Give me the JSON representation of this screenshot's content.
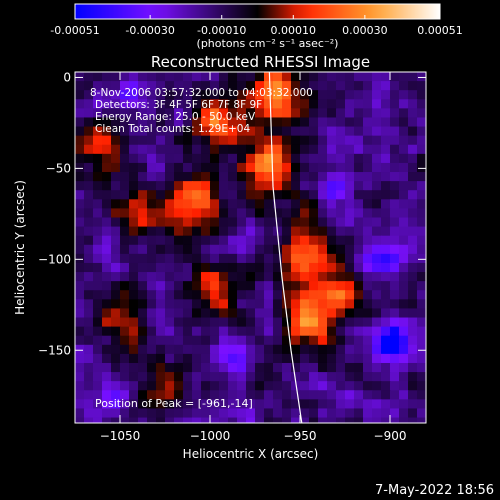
{
  "chart_data": {
    "type": "heatmap",
    "title": "Reconstructed RHESSI Image",
    "xlabel": "Heliocentric X (arcsec)",
    "ylabel": "Heliocentric Y (arcsec)",
    "xlim": [
      -1075,
      -880
    ],
    "ylim": [
      -190,
      3
    ],
    "x_ticks": [
      -1050,
      -1000,
      -950,
      -900
    ],
    "x_tick_labels": [
      "−1050",
      "−1000",
      "−950",
      "−900"
    ],
    "y_ticks": [
      0,
      -50,
      -100,
      -150
    ],
    "y_tick_labels": [
      "0",
      "−50",
      "−100",
      "−150"
    ],
    "colorbar": {
      "range": [
        -0.00051,
        0.00051
      ],
      "tick_values": [
        -0.00051,
        -0.0003,
        -0.0001,
        0.0001,
        0.0003,
        0.00051
      ],
      "tick_labels": [
        "-0.00051",
        "-0.00030",
        "-0.00010",
        "0.00010",
        "0.00030",
        "0.00051"
      ],
      "units": "(photons cm⁻² s⁻¹ asec⁻²)",
      "colors": [
        "#0000ff",
        "#7a10ff",
        "#000000",
        "#ff2000",
        "#ffa030",
        "#ffffff"
      ]
    },
    "annotations": [
      "8-Nov-2006 03:57:32.000 to 04:03:32.000",
      "Detectors: 3F 4F 5F 6F 7F 8F 9F",
      "Energy Range: 25.0 - 50.0 keV",
      "Clean    Total counts: 1.29E+04",
      "Position of Peak = [-961,-14]"
    ],
    "peak": [
      -961,
      -14
    ],
    "limb_curve": [
      [
        -967,
        3
      ],
      [
        -965,
        -60
      ],
      [
        -960,
        -110
      ],
      [
        -955,
        -150
      ],
      [
        -949,
        -190
      ]
    ],
    "grid": false,
    "legend": "colorbar top",
    "footer": "7-May-2022 18:56",
    "hot_sources": [
      {
        "x": -963,
        "y": -8,
        "peak": 0.00048
      },
      {
        "x": -995,
        "y": -25,
        "peak": 0.00034
      },
      {
        "x": -967,
        "y": -50,
        "peak": 0.00044
      },
      {
        "x": -1010,
        "y": -68,
        "peak": 0.00036
      },
      {
        "x": -1040,
        "y": -72,
        "peak": 0.00022
      },
      {
        "x": -948,
        "y": -95,
        "peak": 0.0004
      },
      {
        "x": -930,
        "y": -120,
        "peak": 0.00034
      },
      {
        "x": -1000,
        "y": -118,
        "peak": 0.00028
      },
      {
        "x": -947,
        "y": -135,
        "peak": 0.00032
      },
      {
        "x": -1050,
        "y": -132,
        "peak": 0.00018
      },
      {
        "x": -1025,
        "y": -165,
        "peak": 0.0002
      },
      {
        "x": -1060,
        "y": -40,
        "peak": 0.00024
      }
    ],
    "cold_sources": [
      {
        "x": -1045,
        "y": -10,
        "peak": -0.00022
      },
      {
        "x": -930,
        "y": -60,
        "peak": -0.0003
      },
      {
        "x": -898,
        "y": -145,
        "peak": -0.00046
      },
      {
        "x": -1055,
        "y": -175,
        "peak": -0.00024
      },
      {
        "x": -990,
        "y": -155,
        "peak": -0.0002
      },
      {
        "x": -905,
        "y": -100,
        "peak": -0.00026
      }
    ]
  }
}
